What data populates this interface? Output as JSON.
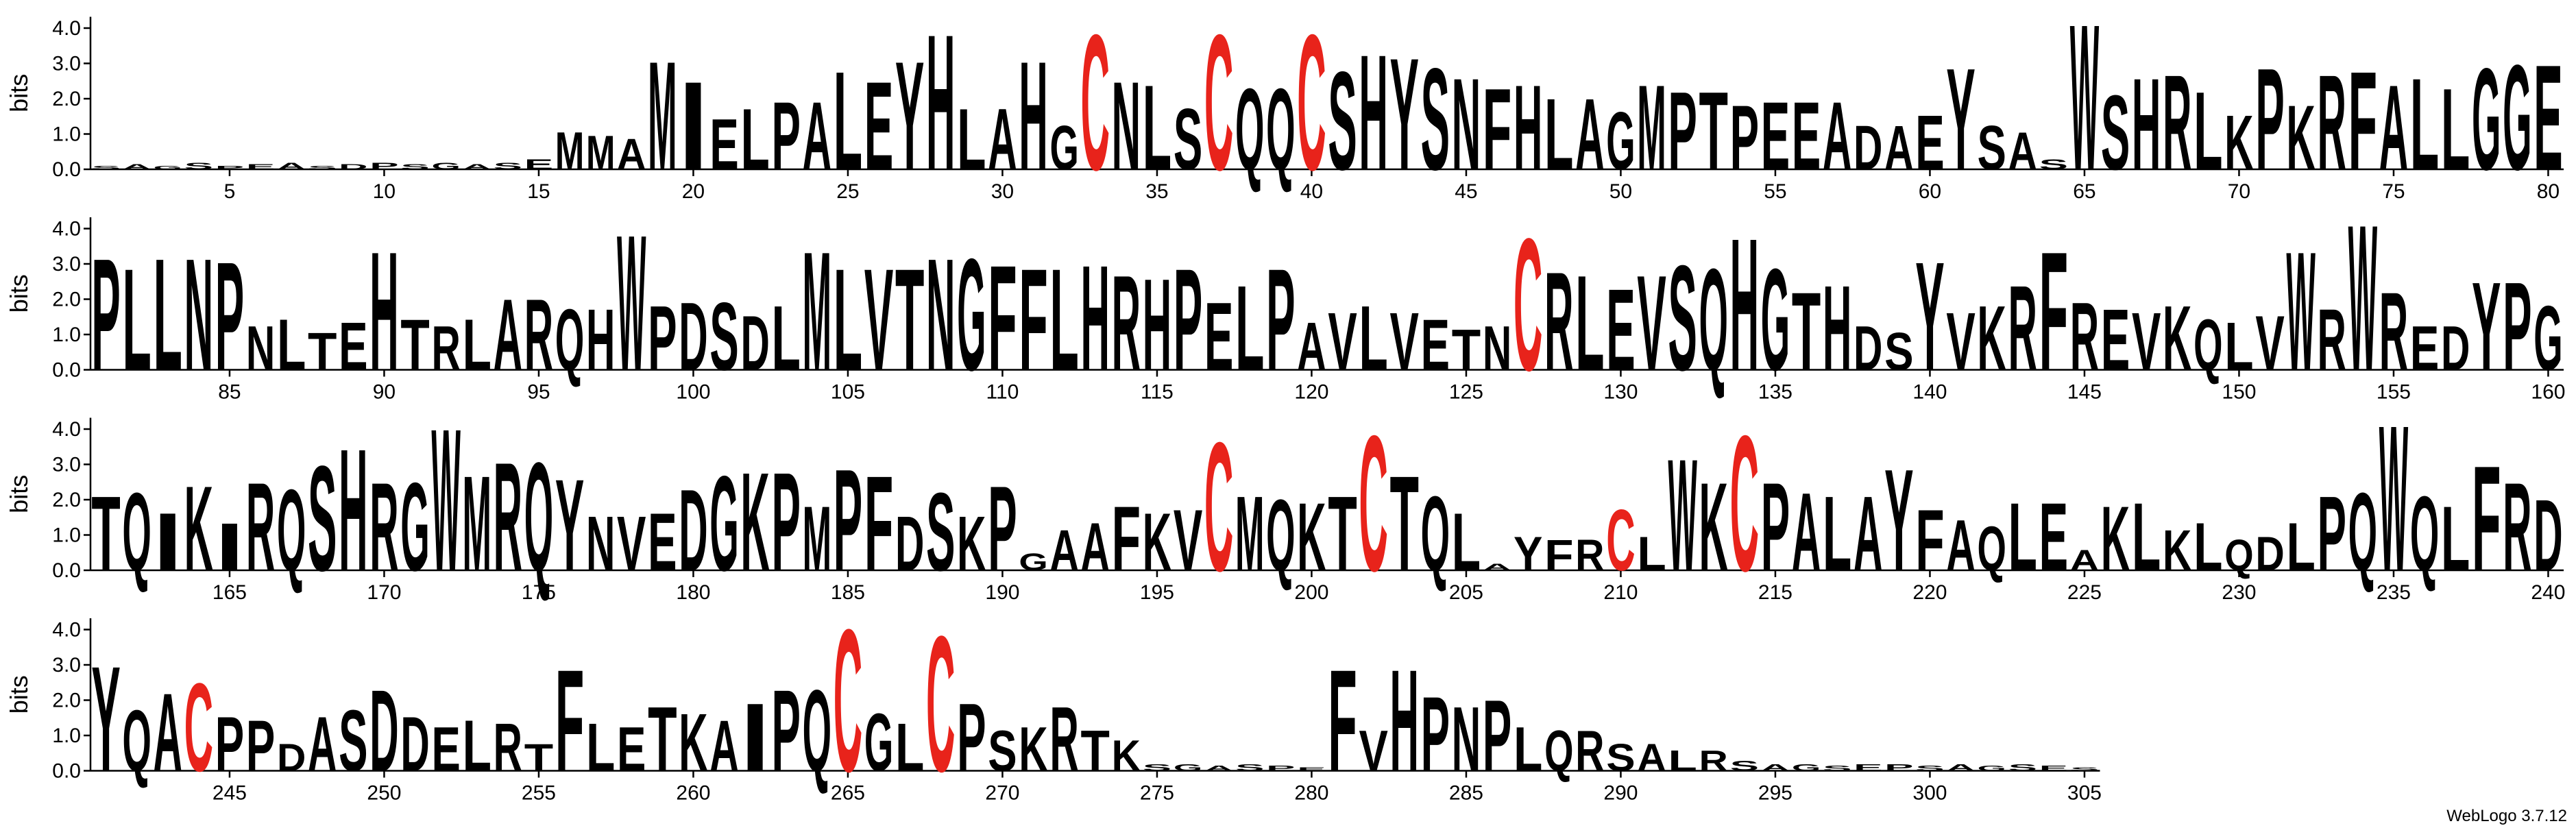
{
  "chart_data": [
    {
      "type": "logo",
      "y_label": "bits",
      "color": "#000000",
      "highlight_colors": {
        "C": "#e8231b"
      },
      "ylim": [
        0,
        4.32
      ],
      "yticks": [
        {
          "value": 0,
          "label": "0.0"
        },
        {
          "value": 1,
          "label": "1.0"
        },
        {
          "value": 2,
          "label": "2.0"
        },
        {
          "value": 3,
          "label": "3.0"
        },
        {
          "value": 4,
          "label": "4.0"
        }
      ],
      "xlim": [
        0.5,
        80.5
      ],
      "xticks": [
        5,
        10,
        15,
        20,
        25,
        30,
        35,
        40,
        45,
        50,
        55,
        60,
        65,
        70,
        75,
        80
      ],
      "x": [
        1,
        2,
        3,
        4,
        5,
        6,
        7,
        8,
        9,
        10,
        11,
        12,
        13,
        14,
        15,
        16,
        17,
        18,
        19,
        20,
        21,
        22,
        23,
        24,
        25,
        26,
        27,
        28,
        29,
        30,
        31,
        32,
        33,
        34,
        35,
        36,
        37,
        38,
        39,
        40,
        41,
        42,
        43,
        44,
        45,
        46,
        47,
        48,
        49,
        50,
        51,
        52,
        53,
        54,
        55,
        56,
        57,
        58,
        59,
        60,
        61,
        62,
        63,
        64,
        65,
        66,
        67,
        68,
        69,
        70,
        71,
        72,
        73,
        74,
        75,
        76,
        77,
        78,
        79,
        80
      ],
      "letters": [
        "S",
        "A",
        "G",
        "S",
        "P",
        "E",
        "A",
        "S",
        "D",
        "P",
        "S",
        "G",
        "A",
        "S",
        "E",
        "M",
        "M",
        "A",
        "M",
        "I",
        "E",
        "L",
        "P",
        "A",
        "L",
        "E",
        "Y",
        "H",
        "L",
        "A",
        "H",
        "G",
        "C",
        "N",
        "L",
        "S",
        "C",
        "Q",
        "Q",
        "C",
        "S",
        "H",
        "Y",
        "S",
        "N",
        "F",
        "H",
        "L",
        "A",
        "G",
        "M",
        "P",
        "T",
        "P",
        "E",
        "E",
        "A",
        "D",
        "A",
        "E",
        "Y",
        "S",
        "A",
        "S",
        "W",
        "S",
        "H",
        "R",
        "L",
        "K",
        "P",
        "K",
        "R",
        "F",
        "A",
        "L",
        "L",
        "G",
        "G",
        "E"
      ],
      "values": [
        0.1,
        0.15,
        0.1,
        0.2,
        0.1,
        0.15,
        0.2,
        0.1,
        0.15,
        0.2,
        0.15,
        0.2,
        0.15,
        0.2,
        0.3,
        1.1,
        1.0,
        0.9,
        3.2,
        2.6,
        1.5,
        1.8,
        2.0,
        2.0,
        2.9,
        2.6,
        3.2,
        4.0,
        1.8,
        1.8,
        3.2,
        1.3,
        4.0,
        2.6,
        2.5,
        1.8,
        4.0,
        2.4,
        2.4,
        4.0,
        2.9,
        3.4,
        3.3,
        3.0,
        2.7,
        2.4,
        2.5,
        2.1,
        2.1,
        1.7,
        2.5,
        2.3,
        2.3,
        1.9,
        2.0,
        2.0,
        2.0,
        1.3,
        1.3,
        1.6,
        3.0,
        1.3,
        1.1,
        0.3,
        4.3,
        2.2,
        2.7,
        2.8,
        2.3,
        1.6,
        3.0,
        1.9,
        2.8,
        2.9,
        2.5,
        2.7,
        2.4,
        3.0,
        3.1,
        3.1
      ]
    },
    {
      "type": "logo",
      "y_label": "bits",
      "color": "#000000",
      "highlight_colors": {
        "C": "#e8231b"
      },
      "ylim": [
        0,
        4.32
      ],
      "yticks": [
        {
          "value": 0,
          "label": "0.0"
        },
        {
          "value": 1,
          "label": "1.0"
        },
        {
          "value": 2,
          "label": "2.0"
        },
        {
          "value": 3,
          "label": "3.0"
        },
        {
          "value": 4,
          "label": "4.0"
        }
      ],
      "xlim": [
        80.5,
        160.5
      ],
      "xticks": [
        85,
        90,
        95,
        100,
        105,
        110,
        115,
        120,
        125,
        130,
        135,
        140,
        145,
        150,
        155,
        160
      ],
      "x": [
        81,
        82,
        83,
        84,
        85,
        86,
        87,
        88,
        89,
        90,
        91,
        92,
        93,
        94,
        95,
        96,
        97,
        98,
        99,
        100,
        101,
        102,
        103,
        104,
        105,
        106,
        107,
        108,
        109,
        110,
        111,
        112,
        113,
        114,
        115,
        116,
        117,
        118,
        119,
        120,
        121,
        122,
        123,
        124,
        125,
        126,
        127,
        128,
        129,
        130,
        131,
        132,
        133,
        134,
        135,
        136,
        137,
        138,
        139,
        140,
        141,
        142,
        143,
        144,
        145,
        146,
        147,
        148,
        149,
        150,
        151,
        152,
        153,
        154,
        155,
        156,
        157,
        158,
        159,
        160
      ],
      "letters": [
        "P",
        "L",
        "L",
        "N",
        "P",
        "N",
        "L",
        "T",
        "E",
        "H",
        "T",
        "R",
        "L",
        "A",
        "R",
        "Q",
        "H",
        "W",
        "P",
        "D",
        "S",
        "D",
        "L",
        "M",
        "L",
        "V",
        "T",
        "N",
        "G",
        "F",
        "F",
        "L",
        "H",
        "R",
        "H",
        "P",
        "E",
        "L",
        "P",
        "A",
        "V",
        "L",
        "V",
        "E",
        "T",
        "N",
        "C",
        "R",
        "L",
        "E",
        "V",
        "S",
        "Q",
        "H",
        "G",
        "T",
        "H",
        "D",
        "S",
        "Y",
        "V",
        "K",
        "R",
        "F",
        "R",
        "E",
        "V",
        "K",
        "Q",
        "L",
        "V",
        "W",
        "R",
        "W",
        "R",
        "E",
        "D",
        "Y",
        "P",
        "G"
      ],
      "values": [
        3.3,
        3.0,
        3.3,
        3.3,
        3.2,
        1.3,
        1.5,
        1.1,
        1.4,
        3.5,
        1.5,
        1.3,
        1.5,
        2.1,
        2.1,
        1.8,
        1.8,
        4.0,
        1.9,
        2.0,
        2.0,
        1.6,
        1.9,
        3.5,
        3.0,
        3.0,
        3.0,
        3.3,
        3.3,
        3.1,
        3.0,
        3.0,
        3.1,
        2.8,
        2.7,
        3.0,
        2.0,
        2.5,
        3.0,
        1.4,
        1.7,
        1.9,
        1.7,
        1.5,
        1.2,
        1.3,
        3.9,
        2.9,
        2.8,
        2.4,
        2.8,
        3.1,
        3.0,
        3.9,
        3.0,
        2.3,
        2.5,
        1.3,
        1.1,
        3.2,
        1.7,
        1.9,
        2.5,
        3.5,
        2.0,
        1.8,
        1.7,
        1.9,
        1.5,
        1.4,
        1.6,
        3.5,
        1.8,
        4.3,
        2.3,
        1.3,
        1.3,
        2.6,
        2.6,
        1.9
      ]
    },
    {
      "type": "logo",
      "y_label": "bits",
      "color": "#000000",
      "highlight_colors": {
        "C": "#e8231b"
      },
      "ylim": [
        0,
        4.32
      ],
      "yticks": [
        {
          "value": 0,
          "label": "0.0"
        },
        {
          "value": 1,
          "label": "1.0"
        },
        {
          "value": 2,
          "label": "2.0"
        },
        {
          "value": 3,
          "label": "3.0"
        },
        {
          "value": 4,
          "label": "4.0"
        }
      ],
      "xlim": [
        160.5,
        240.5
      ],
      "xticks": [
        165,
        170,
        175,
        180,
        185,
        190,
        195,
        200,
        205,
        210,
        215,
        220,
        225,
        230,
        235,
        240
      ],
      "x": [
        161,
        162,
        163,
        164,
        165,
        166,
        167,
        168,
        169,
        170,
        171,
        172,
        173,
        174,
        175,
        176,
        177,
        178,
        179,
        180,
        181,
        182,
        183,
        184,
        185,
        186,
        187,
        188,
        189,
        190,
        191,
        192,
        193,
        194,
        195,
        196,
        197,
        198,
        199,
        200,
        201,
        202,
        203,
        204,
        205,
        206,
        207,
        208,
        209,
        210,
        211,
        212,
        213,
        214,
        215,
        216,
        217,
        218,
        219,
        220,
        221,
        222,
        223,
        224,
        225,
        226,
        227,
        228,
        229,
        230,
        231,
        232,
        233,
        234,
        235,
        236,
        237,
        238,
        239,
        240
      ],
      "letters": [
        "T",
        "Q",
        "I",
        "K",
        "I",
        "R",
        "Q",
        "S",
        "H",
        "R",
        "G",
        "W",
        "M",
        "R",
        "Q",
        "Y",
        "N",
        "V",
        "E",
        "D",
        "G",
        "K",
        "P",
        "M",
        "P",
        "F",
        "D",
        "S",
        "K",
        "P",
        "G",
        "A",
        "A",
        "F",
        "K",
        "V",
        "C",
        "M",
        "Q",
        "K",
        "T",
        "C",
        "T",
        "Q",
        "L",
        "A",
        "Y",
        "F",
        "R",
        "C",
        "L",
        "W",
        "K",
        "C",
        "P",
        "A",
        "L",
        "A",
        "Y",
        "F",
        "A",
        "Q",
        "L",
        "E",
        "A",
        "K",
        "L",
        "K",
        "L",
        "Q",
        "D",
        "L",
        "P",
        "Q",
        "W",
        "Q",
        "L",
        "F",
        "R",
        "D"
      ],
      "values": [
        2.2,
        2.3,
        1.7,
        2.5,
        1.4,
        2.6,
        2.4,
        3.1,
        3.6,
        2.6,
        2.6,
        4.2,
        2.8,
        3.2,
        3.2,
        2.7,
        1.6,
        1.6,
        1.7,
        2.4,
        2.8,
        2.9,
        2.9,
        1.9,
        3.0,
        2.8,
        1.6,
        2.3,
        1.6,
        2.5,
        0.5,
        1.2,
        1.4,
        1.9,
        1.7,
        1.8,
        3.8,
        2.2,
        2.1,
        2.0,
        2.2,
        4.0,
        2.8,
        2.2,
        1.7,
        0.2,
        1.0,
        0.9,
        0.9,
        1.8,
        1.0,
        3.3,
        2.6,
        4.0,
        2.6,
        2.3,
        2.2,
        2.2,
        3.0,
        1.8,
        1.5,
        1.3,
        2.0,
        2.0,
        0.6,
        1.9,
        2.0,
        1.2,
        1.4,
        0.9,
        1.0,
        1.4,
        2.2,
        2.3,
        4.3,
        2.2,
        1.9,
        3.1,
        2.6,
        2.1
      ]
    },
    {
      "type": "logo",
      "y_label": "bits",
      "color": "#000000",
      "highlight_colors": {
        "C": "#e8231b"
      },
      "ylim": [
        0,
        4.32
      ],
      "yticks": [
        {
          "value": 0,
          "label": "0.0"
        },
        {
          "value": 1,
          "label": "1.0"
        },
        {
          "value": 2,
          "label": "2.0"
        },
        {
          "value": 3,
          "label": "3.0"
        },
        {
          "value": 4,
          "label": "4.0"
        }
      ],
      "xlim": [
        240.5,
        305.5
      ],
      "xticks": [
        245,
        250,
        255,
        260,
        265,
        270,
        275,
        280,
        285,
        290,
        295,
        300,
        305
      ],
      "x": [
        241,
        242,
        243,
        244,
        245,
        246,
        247,
        248,
        249,
        250,
        251,
        252,
        253,
        254,
        255,
        256,
        257,
        258,
        259,
        260,
        261,
        262,
        263,
        264,
        265,
        266,
        267,
        268,
        269,
        270,
        271,
        272,
        273,
        274,
        275,
        276,
        277,
        278,
        279,
        280,
        281,
        282,
        283,
        284,
        285,
        286,
        287,
        288,
        289,
        290,
        291,
        292,
        293,
        294,
        295,
        296,
        297,
        298,
        299,
        300,
        301,
        302,
        303,
        304,
        305
      ],
      "letters": [
        "Y",
        "Q",
        "A",
        "C",
        "P",
        "P",
        "D",
        "A",
        "S",
        "D",
        "D",
        "E",
        "L",
        "R",
        "T",
        "F",
        "L",
        "E",
        "T",
        "K",
        "A",
        "I",
        "P",
        "Q",
        "C",
        "G",
        "L",
        "C",
        "P",
        "S",
        "K",
        "R",
        "T",
        "K",
        "S",
        "G",
        "A",
        "S",
        "P",
        "E",
        "F",
        "V",
        "H",
        "P",
        "N",
        "P",
        "L",
        "Q",
        "R",
        "S",
        "A",
        "L",
        "R",
        "S",
        "A",
        "G",
        "S",
        "E",
        "P",
        "S",
        "A",
        "G",
        "S",
        "E",
        "S"
      ],
      "values": [
        3.1,
        1.8,
        2.3,
        2.6,
        1.6,
        1.5,
        0.8,
        1.6,
        1.8,
        2.4,
        1.6,
        1.3,
        1.5,
        1.4,
        0.8,
        3.0,
        1.4,
        1.3,
        1.9,
        1.7,
        1.5,
        2.0,
        2.4,
        2.4,
        4.2,
        1.7,
        1.4,
        4.0,
        2.0,
        1.2,
        1.3,
        1.9,
        1.2,
        0.9,
        0.2,
        0.2,
        0.15,
        0.2,
        0.15,
        0.1,
        3.0,
        1.2,
        3.0,
        2.2,
        1.9,
        2.1,
        1.3,
        1.2,
        1.2,
        0.8,
        0.8,
        0.6,
        0.6,
        0.3,
        0.2,
        0.2,
        0.15,
        0.2,
        0.2,
        0.15,
        0.2,
        0.15,
        0.2,
        0.15,
        0.1
      ]
    }
  ],
  "footer": "WebLogo 3.7.12"
}
